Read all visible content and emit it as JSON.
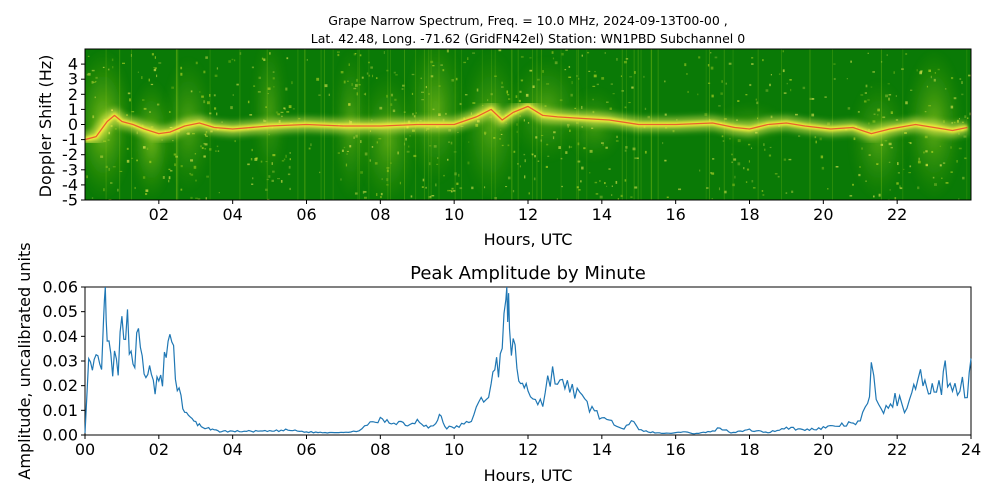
{
  "spectrogram": {
    "title_line1": "Grape Narrow Spectrum, Freq. = 10.0 MHz, 2024-09-13T00-00 ,",
    "title_line2": "Lat.  42.48, Long. -71.62 (GridFN42el) Station: WN1PBD Subchannel 0",
    "ylabel": "Doppler Shift (Hz)",
    "xlabel": "Hours, UTC",
    "y_ticks": [
      "4",
      "3",
      "2",
      "1",
      "0",
      "-1",
      "-2",
      "-3",
      "-4",
      "-5"
    ],
    "y_range": [
      -5,
      5
    ],
    "x_range": [
      0,
      24
    ],
    "x_ticks": [
      "02",
      "04",
      "06",
      "08",
      "10",
      "12",
      "14",
      "16",
      "18",
      "20",
      "22"
    ],
    "colors": {
      "background": "#0a7a06",
      "mid": "#9ccc16",
      "bright": "#f4f05a",
      "hot": "#e8352a"
    },
    "signal_trace": [
      [
        0.0,
        -1.0
      ],
      [
        0.3,
        -0.8
      ],
      [
        0.6,
        0.2
      ],
      [
        0.8,
        0.6
      ],
      [
        1.0,
        0.2
      ],
      [
        1.3,
        0.0
      ],
      [
        1.6,
        -0.3
      ],
      [
        2.0,
        -0.6
      ],
      [
        2.3,
        -0.5
      ],
      [
        2.7,
        -0.1
      ],
      [
        3.1,
        0.1
      ],
      [
        3.5,
        -0.2
      ],
      [
        4.0,
        -0.3
      ],
      [
        5.0,
        -0.1
      ],
      [
        6.0,
        0.0
      ],
      [
        7.0,
        -0.1
      ],
      [
        8.0,
        -0.1
      ],
      [
        9.0,
        0.0
      ],
      [
        10.0,
        0.0
      ],
      [
        10.6,
        0.5
      ],
      [
        11.0,
        1.0
      ],
      [
        11.3,
        0.3
      ],
      [
        11.6,
        0.8
      ],
      [
        12.0,
        1.2
      ],
      [
        12.4,
        0.6
      ],
      [
        12.8,
        0.5
      ],
      [
        13.5,
        0.4
      ],
      [
        14.2,
        0.3
      ],
      [
        15.0,
        0.0
      ],
      [
        16.0,
        0.0
      ],
      [
        17.0,
        0.1
      ],
      [
        17.6,
        -0.2
      ],
      [
        18.0,
        -0.3
      ],
      [
        18.5,
        0.0
      ],
      [
        19.0,
        0.1
      ],
      [
        19.5,
        -0.1
      ],
      [
        20.2,
        -0.3
      ],
      [
        20.8,
        -0.2
      ],
      [
        21.3,
        -0.6
      ],
      [
        21.8,
        -0.3
      ],
      [
        22.5,
        0.0
      ],
      [
        23.0,
        -0.2
      ],
      [
        23.5,
        -0.4
      ],
      [
        23.9,
        -0.2
      ]
    ]
  },
  "amplitude": {
    "title": "Peak Amplitude by Minute",
    "ylabel": "Amplitude, uncalibrated units",
    "xlabel": "Hours, UTC",
    "x_ticks": [
      "00",
      "02",
      "04",
      "06",
      "08",
      "10",
      "12",
      "14",
      "16",
      "18",
      "20",
      "22",
      "24"
    ],
    "y_ticks": [
      "0.00",
      "0.01",
      "0.02",
      "0.03",
      "0.04",
      "0.05",
      "0.06"
    ],
    "line_color": "#1f77b4"
  },
  "chart_data": [
    {
      "type": "heatmap",
      "title": "Grape Narrow Spectrum, Freq. = 10.0 MHz, 2024-09-13T00-00 , Lat.  42.48, Long. -71.62 (GridFN42el) Station: WN1PBD Subchannel 0",
      "xlabel": "Hours, UTC",
      "ylabel": "Doppler Shift (Hz)",
      "xlim": [
        0,
        24
      ],
      "ylim": [
        -5,
        5
      ]
    },
    {
      "type": "line",
      "title": "Peak Amplitude by Minute",
      "xlabel": "Hours, UTC",
      "ylabel": "Amplitude, uncalibrated units",
      "xlim": [
        0,
        24
      ],
      "ylim": [
        0,
        0.06
      ],
      "x": [
        0.0,
        0.1,
        0.2,
        0.3,
        0.4,
        0.5,
        0.55,
        0.6,
        0.7,
        0.8,
        0.9,
        1.0,
        1.1,
        1.2,
        1.3,
        1.4,
        1.5,
        1.6,
        1.7,
        1.8,
        1.9,
        2.0,
        2.1,
        2.2,
        2.3,
        2.4,
        2.5,
        2.6,
        2.7,
        2.8,
        2.9,
        3.0,
        3.1,
        3.2,
        3.3,
        3.4,
        3.5,
        3.6,
        3.7,
        3.8,
        4.0,
        4.5,
        5.0,
        5.5,
        6.0,
        6.5,
        7.0,
        7.2,
        7.5,
        7.8,
        8.0,
        8.3,
        8.5,
        8.8,
        9.0,
        9.3,
        9.5,
        9.6,
        9.7,
        9.8,
        10.0,
        10.2,
        10.4,
        10.6,
        10.8,
        11.0,
        11.1,
        11.2,
        11.3,
        11.4,
        11.45,
        11.5,
        11.6,
        11.7,
        11.8,
        11.9,
        12.0,
        12.2,
        12.4,
        12.6,
        12.8,
        13.0,
        13.2,
        13.4,
        13.6,
        13.8,
        14.0,
        14.2,
        14.4,
        14.6,
        14.8,
        15.0,
        15.2,
        15.5,
        16.0,
        16.2,
        16.5,
        17.0,
        17.2,
        17.5,
        18.0,
        18.5,
        19.0,
        19.5,
        20.0,
        20.5,
        21.0,
        21.2,
        21.3,
        21.5,
        21.7,
        22.0,
        22.2,
        22.4,
        22.5,
        22.7,
        22.8,
        22.9,
        23.0,
        23.2,
        23.3,
        23.5,
        23.7,
        23.9,
        24.0
      ],
      "series": [
        {
          "values": [
            0.001,
            0.027,
            0.022,
            0.031,
            0.025,
            0.038,
            0.06,
            0.035,
            0.03,
            0.028,
            0.025,
            0.045,
            0.05,
            0.038,
            0.03,
            0.036,
            0.037,
            0.024,
            0.028,
            0.021,
            0.019,
            0.023,
            0.02,
            0.036,
            0.04,
            0.03,
            0.022,
            0.015,
            0.01,
            0.007,
            0.006,
            0.005,
            0.004,
            0.003,
            0.003,
            0.002,
            0.002,
            0.0015,
            0.0015,
            0.0015,
            0.0015,
            0.0015,
            0.0015,
            0.002,
            0.0012,
            0.001,
            0.0012,
            0.001,
            0.0025,
            0.005,
            0.006,
            0.005,
            0.0055,
            0.004,
            0.0065,
            0.003,
            0.004,
            0.009,
            0.005,
            0.003,
            0.003,
            0.004,
            0.005,
            0.01,
            0.015,
            0.02,
            0.025,
            0.03,
            0.04,
            0.05,
            0.055,
            0.045,
            0.035,
            0.025,
            0.022,
            0.02,
            0.018,
            0.015,
            0.013,
            0.025,
            0.022,
            0.018,
            0.02,
            0.015,
            0.012,
            0.01,
            0.007,
            0.005,
            0.0045,
            0.003,
            0.006,
            0.002,
            0.0015,
            0.0008,
            0.0008,
            0.0015,
            0.0005,
            0.0015,
            0.003,
            0.001,
            0.002,
            0.001,
            0.003,
            0.002,
            0.003,
            0.004,
            0.005,
            0.013,
            0.026,
            0.012,
            0.01,
            0.015,
            0.01,
            0.02,
            0.018,
            0.025,
            0.017,
            0.021,
            0.022,
            0.019,
            0.028,
            0.016,
            0.022,
            0.018,
            0.031
          ]
        }
      ]
    }
  ]
}
